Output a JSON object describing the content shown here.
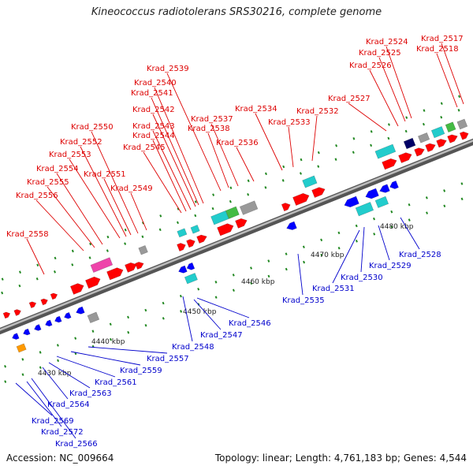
{
  "title": "Kineococcus radiotolerans SRS30216, complete genome",
  "accession_text": "Accession: NC_009664",
  "summary_text": "Topology: linear; Length: 4,761,183 bp; Genes: 4,544",
  "colors": {
    "forward_label": "#dd0000",
    "reverse_label": "#0000cc",
    "forward_gene": "#ff0000",
    "reverse_gene": "#0000ff",
    "cyan_feature": "#22cccc",
    "magenta_feature": "#ee44aa",
    "green_feature": "#44bb44",
    "orange_feature": "#ff9900",
    "gray_feature": "#999999",
    "navy_feature": "#000066",
    "backbone": "#888888",
    "tick_green": "#228822"
  },
  "scale_ticks": [
    "4430 kbp",
    "4440 kbp",
    "4450 kbp",
    "4460 kbp",
    "4470 kbp",
    "4480 kbp"
  ],
  "forward_labels": [
    "Krad_2517",
    "Krad_2518",
    "Krad_2524",
    "Krad_2525",
    "Krad_2526",
    "Krad_2527",
    "Krad_2532",
    "Krad_2533",
    "Krad_2534",
    "Krad_2536",
    "Krad_2537",
    "Krad_2538",
    "Krad_2539",
    "Krad_2540",
    "Krad_2541",
    "Krad_2542",
    "Krad_2543",
    "Krad_2544",
    "Krad_2545",
    "Krad_2549",
    "Krad_2550",
    "Krad_2551",
    "Krad_2552",
    "Krad_2553",
    "Krad_2554",
    "Krad_2555",
    "Krad_2556",
    "Krad_2558"
  ],
  "reverse_labels": [
    "Krad_2528",
    "Krad_2529",
    "Krad_2530",
    "Krad_2531",
    "Krad_2535",
    "Krad_2546",
    "Krad_2547",
    "Krad_2548",
    "Krad_2557",
    "Krad_2559",
    "Krad_2561",
    "Krad_2563",
    "Krad_2564",
    "Krad_2566",
    "Krad_2569",
    "Krad_2572"
  ]
}
